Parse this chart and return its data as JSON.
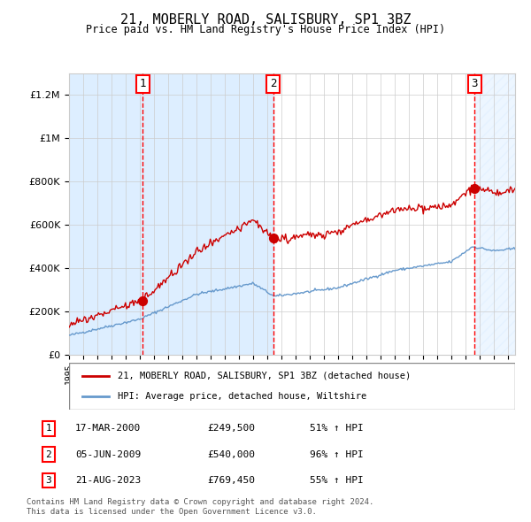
{
  "title": "21, MOBERLY ROAD, SALISBURY, SP1 3BZ",
  "subtitle": "Price paid vs. HM Land Registry's House Price Index (HPI)",
  "xlabel": "",
  "ylabel": "",
  "ylim": [
    0,
    1300000
  ],
  "xlim_start": 1995.0,
  "xlim_end": 2026.5,
  "sale_dates_year": [
    2000.21,
    2009.43,
    2023.64
  ],
  "sale_prices": [
    249500,
    540000,
    769450
  ],
  "sale_labels": [
    "1",
    "2",
    "3"
  ],
  "legend_line1": "21, MOBERLY ROAD, SALISBURY, SP1 3BZ (detached house)",
  "legend_line2": "HPI: Average price, detached house, Wiltshire",
  "table_rows": [
    [
      "1",
      "17-MAR-2000",
      "£249,500",
      "51% ↑ HPI"
    ],
    [
      "2",
      "05-JUN-2009",
      "£540,000",
      "96% ↑ HPI"
    ],
    [
      "3",
      "21-AUG-2023",
      "£769,450",
      "55% ↑ HPI"
    ]
  ],
  "footnote": "Contains HM Land Registry data © Crown copyright and database right 2024.\nThis data is licensed under the Open Government Licence v3.0.",
  "red_line_color": "#cc0000",
  "blue_line_color": "#6699cc",
  "shaded_region_color": "#ddeeff",
  "hatch_color": "#cccccc",
  "grid_color": "#cccccc",
  "background_color": "#ffffff",
  "ytick_labels": [
    "0",
    "200K",
    "400K",
    "600K",
    "800K",
    "1M",
    "1.2M"
  ],
  "ytick_values": [
    0,
    200000,
    400000,
    600000,
    800000,
    1000000,
    1200000
  ]
}
